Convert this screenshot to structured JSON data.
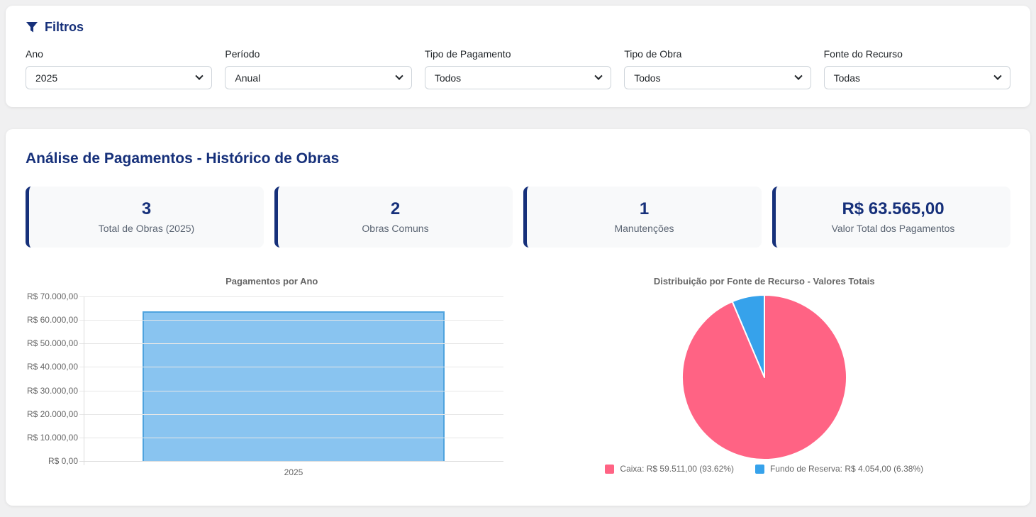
{
  "filters": {
    "title": "Filtros",
    "fields": [
      {
        "label": "Ano",
        "value": "2025"
      },
      {
        "label": "Período",
        "value": "Anual"
      },
      {
        "label": "Tipo de Pagamento",
        "value": "Todos"
      },
      {
        "label": "Tipo de Obra",
        "value": "Todos"
      },
      {
        "label": "Fonte do Recurso",
        "value": "Todas"
      }
    ]
  },
  "analysis": {
    "title": "Análise de Pagamentos - Histórico de Obras",
    "stats": [
      {
        "value": "3",
        "label": "Total de Obras (2025)"
      },
      {
        "value": "2",
        "label": "Obras Comuns"
      },
      {
        "value": "1",
        "label": "Manutenções"
      },
      {
        "value": "R$ 63.565,00",
        "label": "Valor Total dos Pagamentos"
      }
    ]
  },
  "colors": {
    "accent_navy": "#16307a",
    "chart_text": "#666666",
    "page_background": "#f0f0f1",
    "stat_card_background": "#f8f9fa"
  },
  "chart_data": [
    {
      "type": "bar",
      "title": "Pagamentos por Ano",
      "categories": [
        "2025"
      ],
      "values": [
        63565
      ],
      "ylim": [
        0,
        70000
      ],
      "ytick_step": 10000,
      "ytick_labels": [
        "R$ 0,00",
        "R$ 10.000,00",
        "R$ 20.000,00",
        "R$ 30.000,00",
        "R$ 40.000,00",
        "R$ 50.000,00",
        "R$ 60.000,00",
        "R$ 70.000,00"
      ],
      "bar_color": "#89C4F0",
      "bar_border_color": "#4FA3DE",
      "grid": true,
      "legend_position": "none"
    },
    {
      "type": "pie",
      "title": "Distribuição por Fonte de Recurso - Valores Totais",
      "slices": [
        {
          "name": "Caixa",
          "value": 59511,
          "pct": 93.62,
          "color": "#FF6384",
          "label": "Caixa: R$ 59.511,00 (93.62%)"
        },
        {
          "name": "Fundo de Reserva",
          "value": 4054,
          "pct": 6.38,
          "color": "#36A2EB",
          "label": "Fundo de Reserva: R$ 4.054,00 (6.38%)"
        }
      ],
      "total_label": "R$ 63.565,00",
      "legend_position": "bottom"
    }
  ]
}
